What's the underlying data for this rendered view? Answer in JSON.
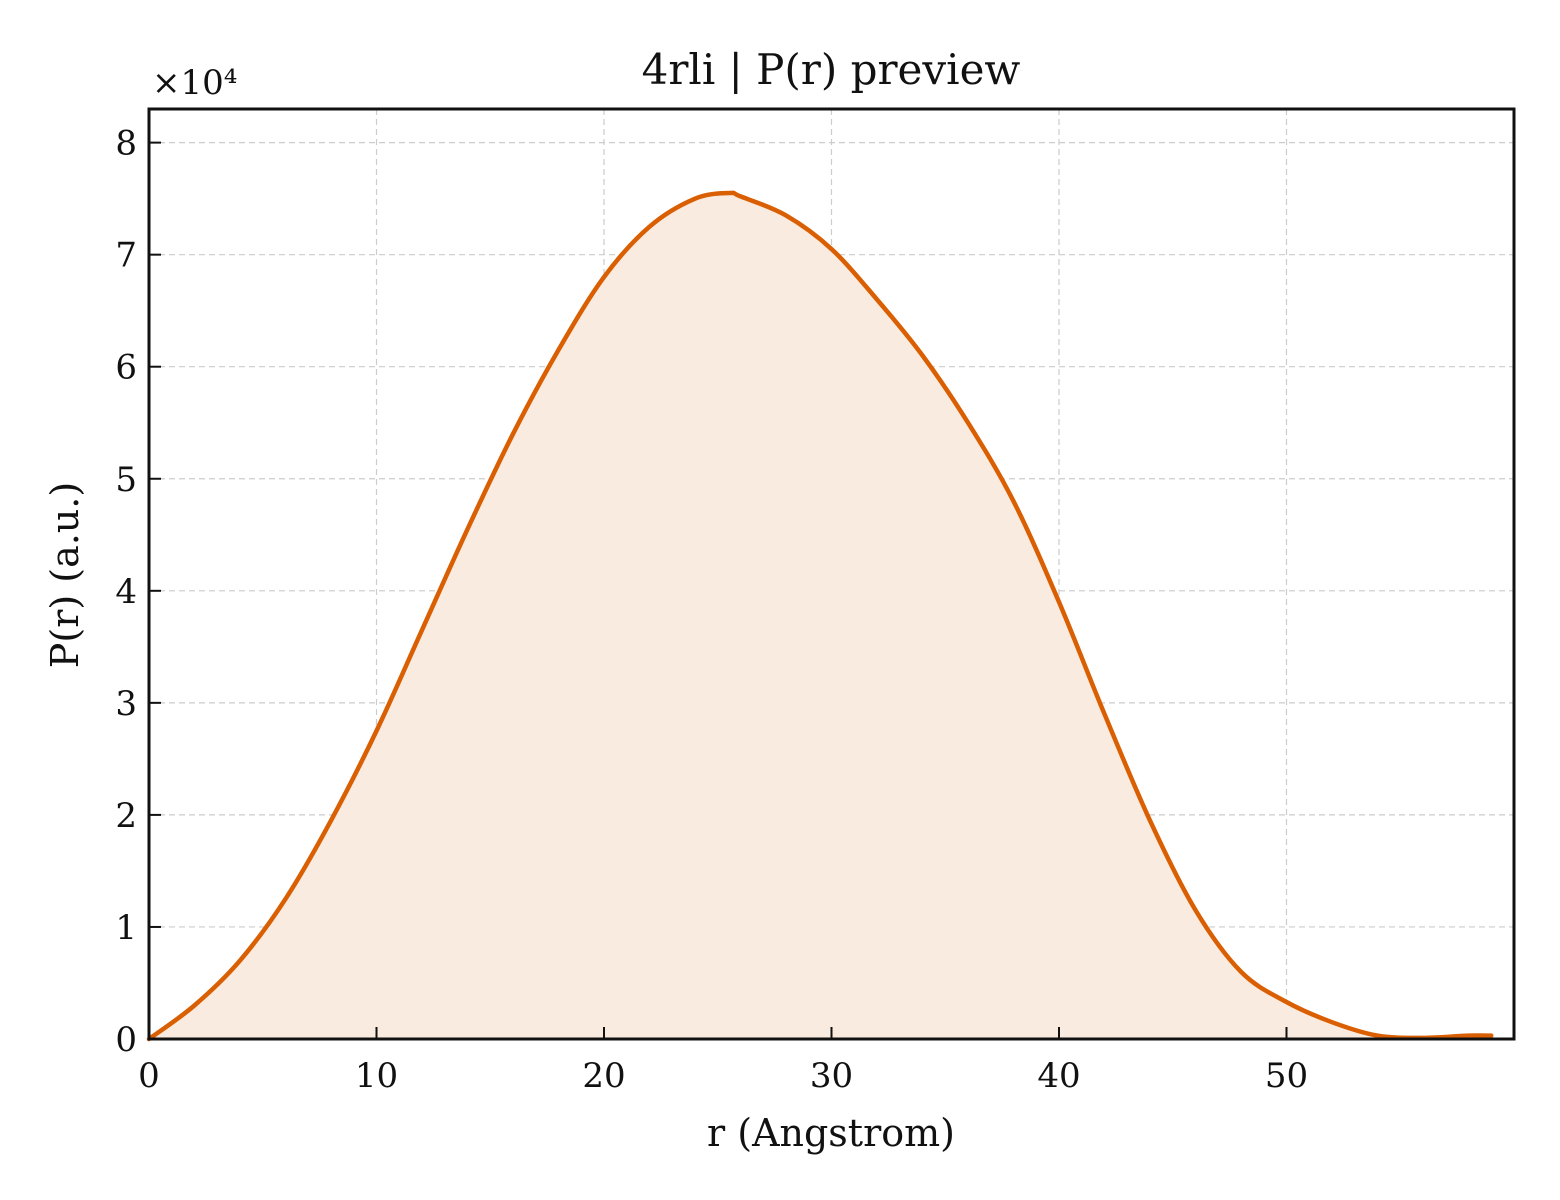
{
  "chart_data": {
    "type": "area",
    "title": "4rli | P(r) preview",
    "xlabel": "r (Angstrom)",
    "ylabel": "P(r) (a.u.)",
    "y_multiplier_label": "×10⁴",
    "xlim": [
      0,
      60
    ],
    "ylim": [
      0,
      8.3
    ],
    "x_ticks": [
      0,
      10,
      20,
      30,
      40,
      50
    ],
    "y_ticks": [
      0,
      1,
      2,
      3,
      4,
      5,
      6,
      7,
      8
    ],
    "grid": true,
    "line_color": "#d95f02",
    "fill_color": "#f9ebe0",
    "series": [
      {
        "x": [
          0,
          2,
          4,
          6,
          8,
          10,
          12,
          14,
          16,
          18,
          20,
          22,
          24,
          25.5,
          26,
          28,
          30,
          32,
          34,
          36,
          38,
          40,
          42,
          44,
          46,
          48,
          50,
          52,
          54,
          56,
          58,
          59
        ],
        "y": [
          0,
          0.3,
          0.7,
          1.25,
          1.95,
          2.75,
          3.65,
          4.55,
          5.4,
          6.15,
          6.8,
          7.25,
          7.5,
          7.55,
          7.52,
          7.35,
          7.05,
          6.6,
          6.1,
          5.5,
          4.8,
          3.9,
          2.9,
          1.95,
          1.15,
          0.6,
          0.33,
          0.15,
          0.03,
          0.01,
          0.03,
          0.03
        ]
      }
    ]
  }
}
